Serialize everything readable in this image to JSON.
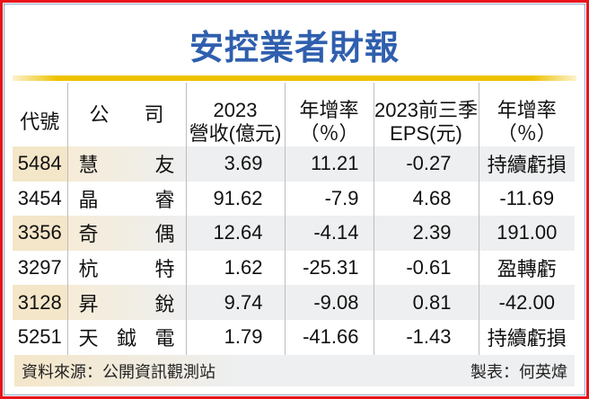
{
  "title": "安控業者財報",
  "headers": [
    {
      "l1": "代號",
      "l2": ""
    },
    {
      "l1": "公",
      "l2": "司"
    },
    {
      "l1": "2023",
      "l2": "營收(億元)"
    },
    {
      "l1": "年增率",
      "l2": "（％）"
    },
    {
      "l1": "2023前三季",
      "l2": "EPS(元)"
    },
    {
      "l1": "年增率",
      "l2": "（％）"
    }
  ],
  "rows": [
    {
      "code": "5484",
      "name": [
        "慧",
        "友"
      ],
      "revenue": "3.69",
      "rev_yoy": "11.21",
      "eps": "-0.27",
      "eps_yoy": "持續虧損"
    },
    {
      "code": "3454",
      "name": [
        "晶",
        "睿"
      ],
      "revenue": "91.62",
      "rev_yoy": "-7.9",
      "eps": "4.68",
      "eps_yoy": "-11.69"
    },
    {
      "code": "3356",
      "name": [
        "奇",
        "偶"
      ],
      "revenue": "12.64",
      "rev_yoy": "-4.14",
      "eps": "2.39",
      "eps_yoy": "191.00"
    },
    {
      "code": "3297",
      "name": [
        "杭",
        "特"
      ],
      "revenue": "1.62",
      "rev_yoy": "-25.31",
      "eps": "-0.61",
      "eps_yoy": "盈轉虧"
    },
    {
      "code": "3128",
      "name": [
        "昇",
        "銳"
      ],
      "revenue": "9.74",
      "rev_yoy": "-9.08",
      "eps": "0.81",
      "eps_yoy": "-42.00"
    },
    {
      "code": "5251",
      "name": [
        "天",
        "鉞",
        "電"
      ],
      "revenue": "1.79",
      "rev_yoy": "-41.66",
      "eps": "-1.43",
      "eps_yoy": "持續虧損"
    }
  ],
  "footer": {
    "source": "資料來源：公開資訊觀測站",
    "credit": "製表：何英煒"
  },
  "colors": {
    "title": "#2f5fae",
    "border": "#e8141a",
    "accent_line": "#eec200",
    "row_highlight": "#f4e6c8"
  }
}
